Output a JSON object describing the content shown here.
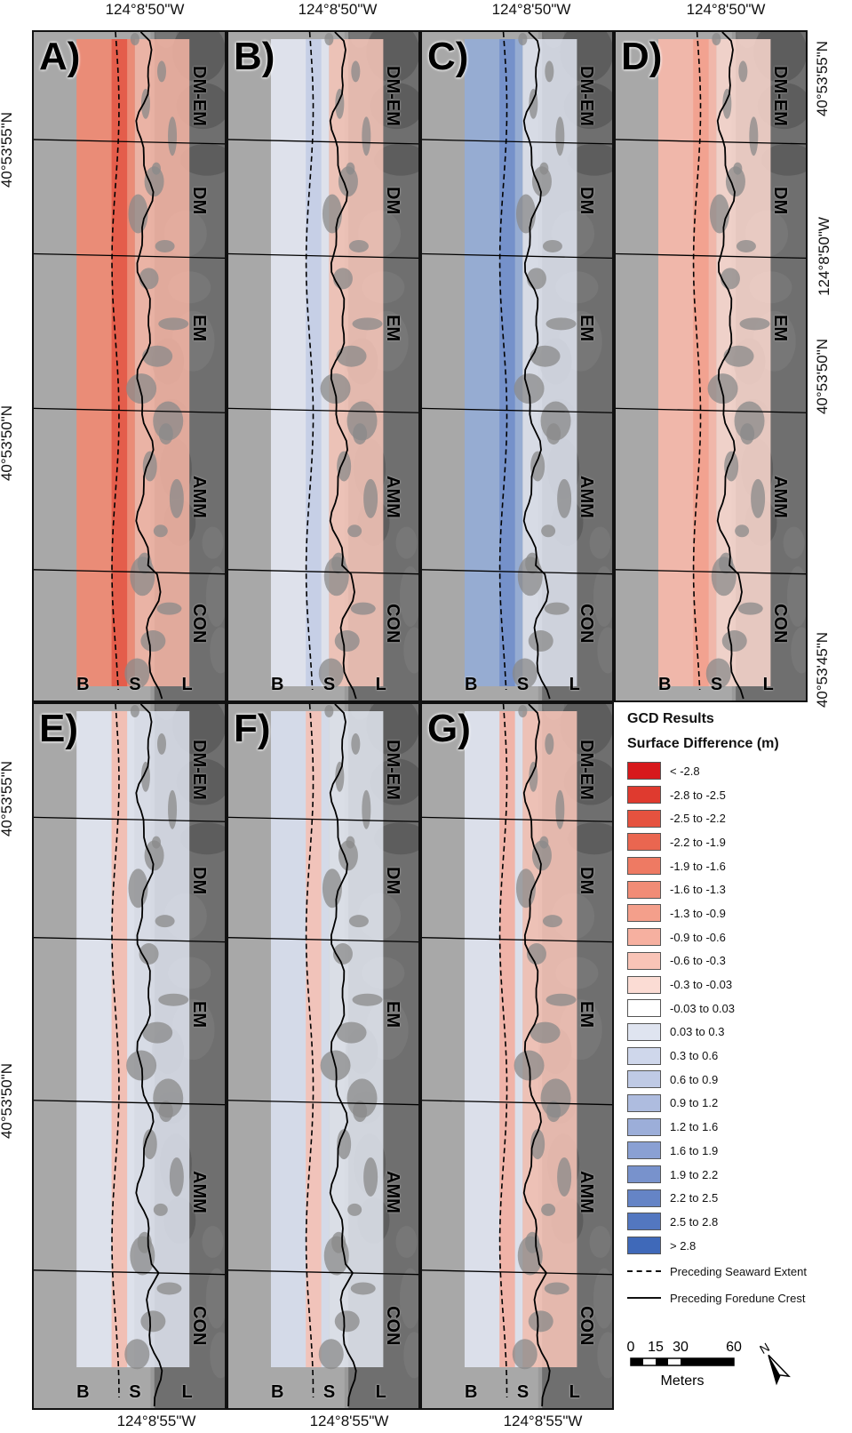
{
  "coords": {
    "top": "124°8'50\"W",
    "bottom": "124°8'55\"W",
    "left_top": "40°53'55\"N",
    "left_mid": "40°53'50\"N",
    "right_1": "40°53'55\"N",
    "right_2": "124°8'50\"W",
    "right_3": "40°53'50\"N",
    "right_4": "40°53'45\"N",
    "left_bottom_1": "40°53'55\"N",
    "left_bottom_2": "40°53'50\"N"
  },
  "zones": [
    "DM-EM",
    "DM",
    "EM",
    "AMM",
    "CON"
  ],
  "base_labels": [
    "B",
    "S",
    "L"
  ],
  "panels": [
    {
      "label": "A)",
      "tone": "red_strong"
    },
    {
      "label": "B)",
      "tone": "mixed"
    },
    {
      "label": "C)",
      "tone": "blue"
    },
    {
      "label": "D)",
      "tone": "red_light"
    },
    {
      "label": "E)",
      "tone": "blue_light"
    },
    {
      "label": "F)",
      "tone": "blue_light2"
    },
    {
      "label": "G)",
      "tone": "mixed2"
    }
  ],
  "legend": {
    "title": "GCD Results",
    "subtitle": "Surface Difference (m)",
    "classes": [
      {
        "label": "< -2.8",
        "color": "#d7191c"
      },
      {
        "label": "-2.8 to -2.5",
        "color": "#df3a2f"
      },
      {
        "label": "-2.5 to -2.2",
        "color": "#e5523f"
      },
      {
        "label": "-2.2 to -1.9",
        "color": "#ea6650"
      },
      {
        "label": "-1.9 to -1.6",
        "color": "#ee7a63"
      },
      {
        "label": "-1.6 to -1.3",
        "color": "#f18c76"
      },
      {
        "label": "-1.3 to -0.9",
        "color": "#f49f8b"
      },
      {
        "label": "-0.9 to -0.6",
        "color": "#f6b0a0"
      },
      {
        "label": "-0.6 to -0.3",
        "color": "#f9c4b7"
      },
      {
        "label": "-0.3 to -0.03",
        "color": "#fbdcd4"
      },
      {
        "label": "-0.03 to 0.03",
        "color": "#ffffff"
      },
      {
        "label": "0.03 to 0.3",
        "color": "#dfe4f0"
      },
      {
        "label": "0.3 to 0.6",
        "color": "#cfd7eb"
      },
      {
        "label": "0.6 to 0.9",
        "color": "#bfcae5"
      },
      {
        "label": "0.9 to 1.2",
        "color": "#aebcdf"
      },
      {
        "label": "1.2 to 1.6",
        "color": "#9caed9"
      },
      {
        "label": "1.6 to 1.9",
        "color": "#8aa0d3"
      },
      {
        "label": "1.9 to 2.2",
        "color": "#7892cc"
      },
      {
        "label": "2.2 to 2.5",
        "color": "#6584c6"
      },
      {
        "label": "2.5 to 2.8",
        "color": "#5377c0"
      },
      {
        "label": "> 2.8",
        "color": "#3f69b9"
      }
    ],
    "lines": [
      {
        "label": "Preceding Seaward Extent",
        "style": "dashed"
      },
      {
        "label": "Preceding Foredune Crest",
        "style": "solid"
      }
    ],
    "scale": {
      "ticks": [
        "0",
        "15",
        "30",
        "60"
      ],
      "unit": "Meters",
      "north": "N"
    }
  }
}
